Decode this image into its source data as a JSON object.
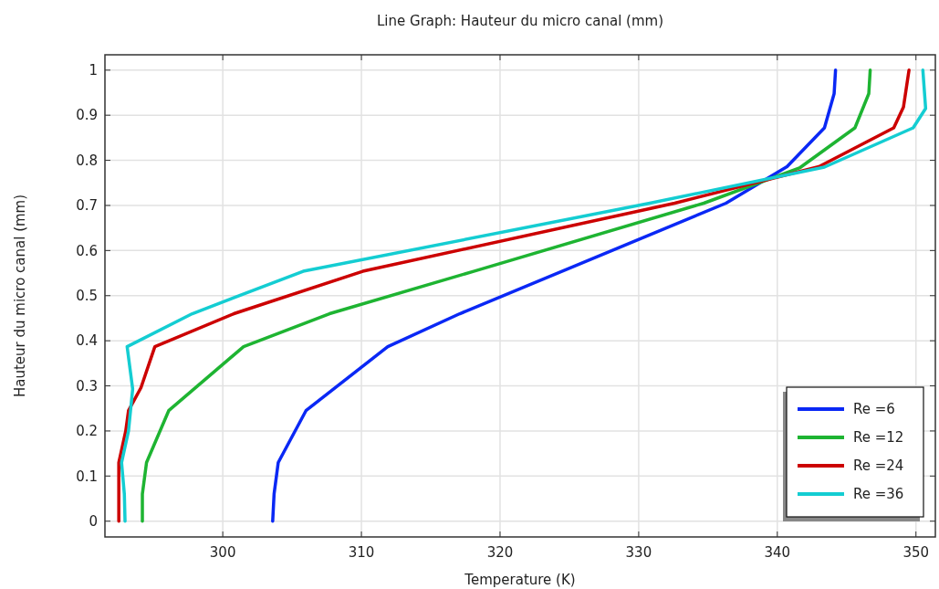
{
  "chart_data": {
    "type": "line",
    "title": "Line Graph: Hauteur du micro canal (mm)",
    "xlabel": "Temperature (K)",
    "ylabel": "Hauteur du micro canal (mm)",
    "xlim": [
      291.5,
      351.4
    ],
    "ylim": [
      -0.035,
      1.034
    ],
    "xticks": [
      300,
      310,
      320,
      330,
      340,
      350
    ],
    "yticks": [
      0,
      0.1,
      0.2,
      0.3,
      0.4,
      0.5,
      0.6,
      0.7,
      0.8,
      0.9,
      1
    ],
    "grid": true,
    "legend": "bottom right",
    "marker": "none",
    "line_style": "solid",
    "series": [
      {
        "name": "Re =6",
        "color": "#0a28f5",
        "x": [
          303.6,
          303.7,
          304.0,
          306.0,
          311.9,
          317.1,
          336.3,
          340.7,
          343.4,
          344.1,
          344.2
        ],
        "values": [
          0,
          0.06,
          0.13,
          0.245,
          0.387,
          0.46,
          0.705,
          0.786,
          0.872,
          0.948,
          1
        ]
      },
      {
        "name": "Re =12",
        "color": "#1eb432",
        "x": [
          294.2,
          294.2,
          294.5,
          296.1,
          301.5,
          307.7,
          318.1,
          334.7,
          341.6,
          345.6,
          346.6,
          346.7
        ],
        "values": [
          0,
          0.06,
          0.13,
          0.245,
          0.387,
          0.46,
          0.554,
          0.705,
          0.783,
          0.872,
          0.948,
          1
        ]
      },
      {
        "name": "Re =24",
        "color": "#cc0000",
        "x": [
          292.5,
          292.5,
          293.0,
          293.2,
          294.1,
          295.1,
          300.8,
          310.1,
          332.6,
          343.0,
          348.4,
          349.1,
          349.5
        ],
        "values": [
          0,
          0.13,
          0.2,
          0.245,
          0.296,
          0.387,
          0.46,
          0.554,
          0.705,
          0.786,
          0.872,
          0.918,
          1
        ]
      },
      {
        "name": "Re =36",
        "color": "#14cdd2",
        "x": [
          292.95,
          292.9,
          292.7,
          293.2,
          293.5,
          293.1,
          297.8,
          305.8,
          330.8,
          343.4,
          349.8,
          350.7,
          350.5
        ],
        "values": [
          0,
          0.06,
          0.13,
          0.2,
          0.293,
          0.387,
          0.46,
          0.554,
          0.705,
          0.785,
          0.872,
          0.915,
          1
        ]
      }
    ]
  }
}
